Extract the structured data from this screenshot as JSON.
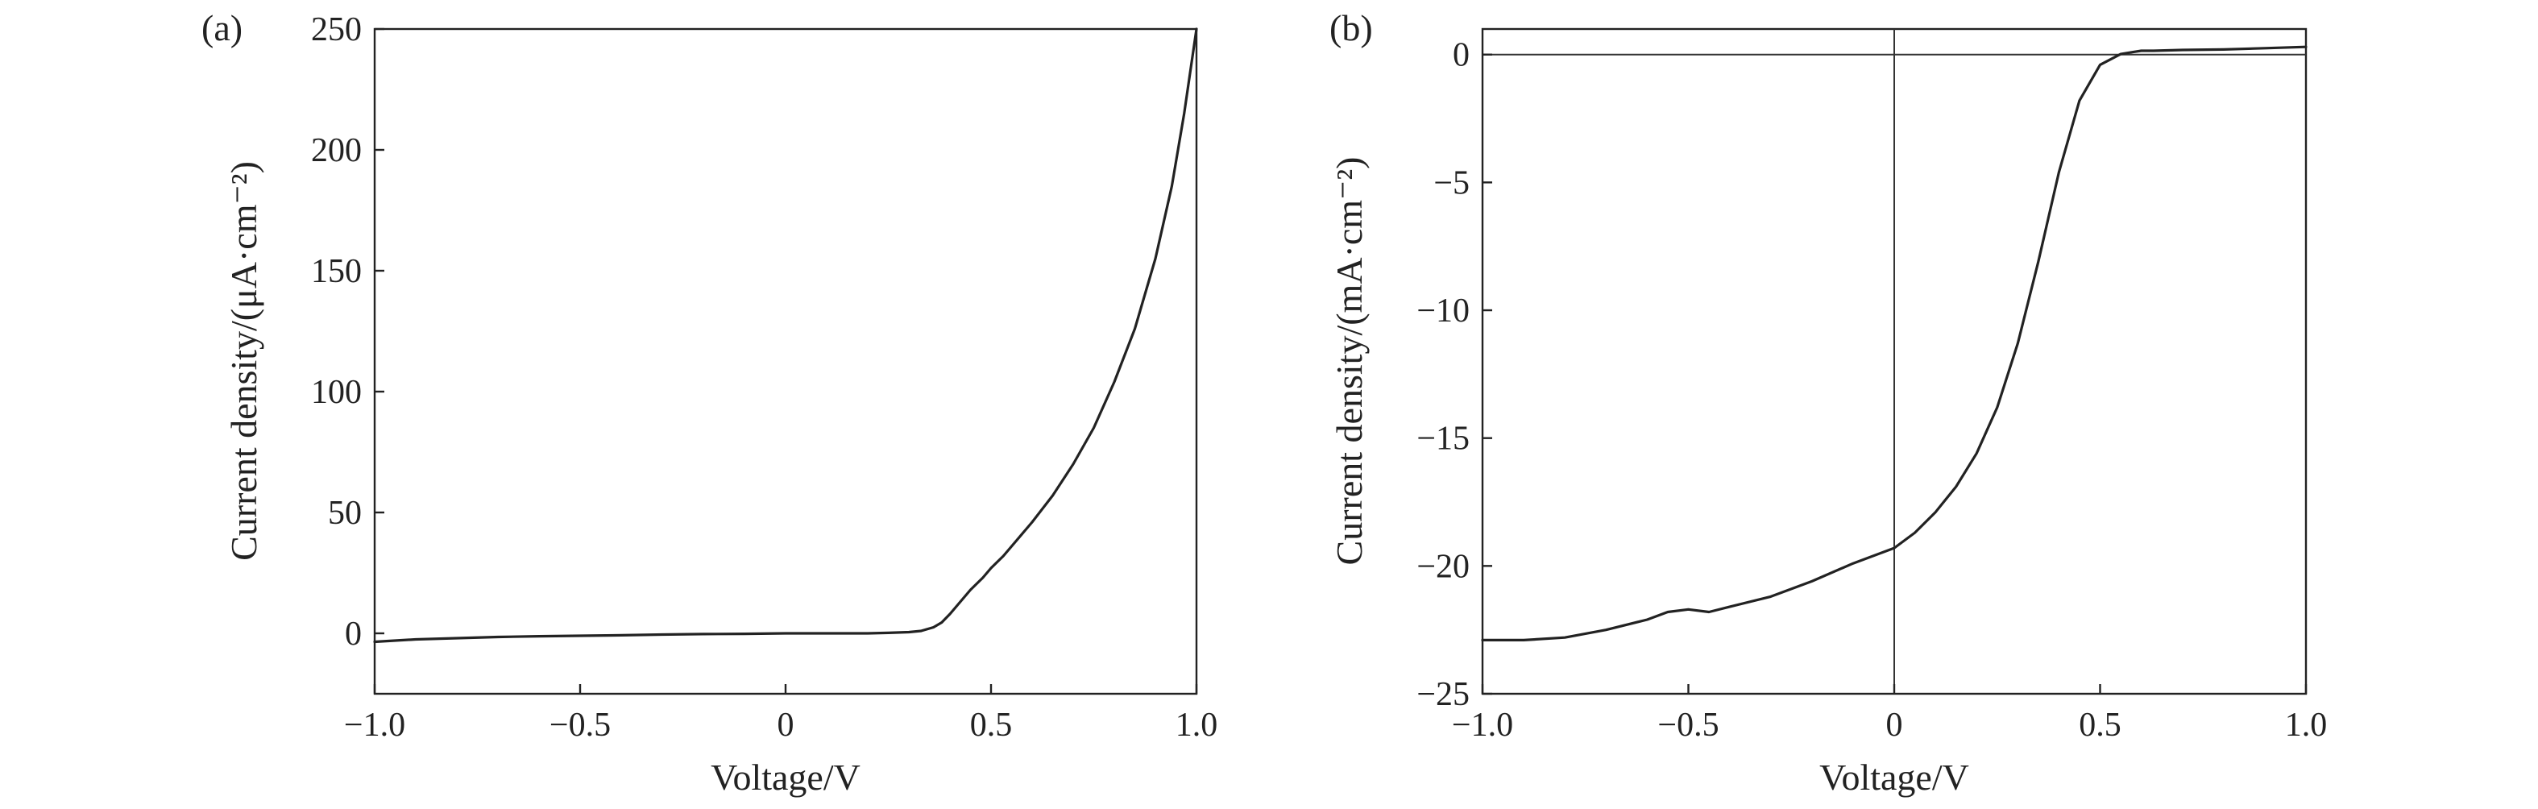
{
  "chart_data": [
    {
      "panel": "(a)",
      "type": "line",
      "title": "",
      "xlabel": "Voltage/V",
      "ylabel": "Current density/(μA·cm⁻²)",
      "xlim": [
        -1.0,
        1.0
      ],
      "ylim": [
        -25,
        250
      ],
      "xticks": [
        -1.0,
        -0.5,
        0,
        0.5,
        1.0
      ],
      "xtick_labels": [
        "−1.0",
        "−0.5",
        "0",
        "0.5",
        "1.0"
      ],
      "yticks": [
        0,
        50,
        100,
        150,
        200,
        250
      ],
      "ytick_labels": [
        "0",
        "50",
        "100",
        "150",
        "200",
        "250"
      ],
      "grid": false,
      "series": [
        {
          "x": [
            -1.0,
            -0.9,
            -0.8,
            -0.7,
            -0.6,
            -0.5,
            -0.4,
            -0.3,
            -0.2,
            -0.1,
            0.0,
            0.1,
            0.2,
            0.25,
            0.3,
            0.33,
            0.36,
            0.38,
            0.4,
            0.42,
            0.45,
            0.48,
            0.5,
            0.53,
            0.56,
            0.6,
            0.65,
            0.7,
            0.75,
            0.8,
            0.85,
            0.9,
            0.94,
            0.97,
            1.0
          ],
          "values": [
            -3.5,
            -2.5,
            -2,
            -1.5,
            -1.2,
            -1,
            -0.8,
            -0.5,
            -0.3,
            -0.2,
            0,
            0,
            0,
            0.2,
            0.5,
            1,
            2.5,
            4.5,
            8,
            12,
            18,
            23,
            27,
            32,
            38,
            46,
            57,
            70,
            85,
            104,
            126,
            155,
            185,
            215,
            250
          ]
        }
      ]
    },
    {
      "panel": "(b)",
      "type": "line",
      "title": "",
      "xlabel": "Voltage/V",
      "ylabel": "Current density/(mA·cm⁻²)",
      "xlim": [
        -1.0,
        1.0
      ],
      "ylim": [
        -25,
        1
      ],
      "xticks": [
        -1.0,
        -0.5,
        0,
        0.5,
        1.0
      ],
      "xtick_labels": [
        "−1.0",
        "−0.5",
        "0",
        "0.5",
        "1.0"
      ],
      "yticks": [
        -25,
        -20,
        -15,
        -10,
        -5,
        0
      ],
      "ytick_labels": [
        "−25",
        "−20",
        "−15",
        "−10",
        "−5",
        "0"
      ],
      "grid": false,
      "reference_lines": {
        "x": 0,
        "y": 0
      },
      "series": [
        {
          "x": [
            -1.0,
            -0.9,
            -0.8,
            -0.7,
            -0.6,
            -0.55,
            -0.5,
            -0.45,
            -0.4,
            -0.3,
            -0.2,
            -0.1,
            0.0,
            0.05,
            0.1,
            0.15,
            0.2,
            0.25,
            0.3,
            0.35,
            0.4,
            0.45,
            0.5,
            0.55,
            0.58,
            0.6,
            0.63,
            0.7,
            0.8,
            0.9,
            1.0
          ],
          "values": [
            -22.9,
            -22.9,
            -22.8,
            -22.5,
            -22.1,
            -21.8,
            -21.7,
            -21.8,
            -21.6,
            -21.2,
            -20.6,
            -19.9,
            -19.3,
            -18.7,
            -17.9,
            -16.9,
            -15.6,
            -13.8,
            -11.3,
            -8.1,
            -4.6,
            -1.8,
            -0.4,
            0.02,
            0.1,
            0.15,
            0.15,
            0.18,
            0.2,
            0.25,
            0.3
          ]
        }
      ]
    }
  ]
}
